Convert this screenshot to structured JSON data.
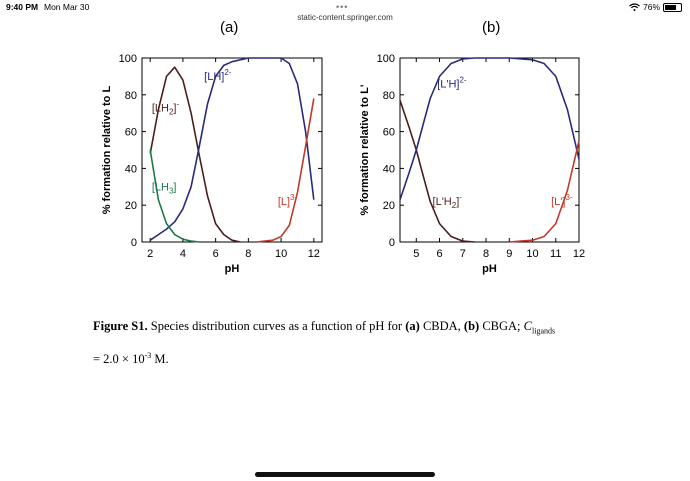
{
  "status_bar": {
    "time": "9:40 PM",
    "date": "Mon Mar 30",
    "battery_text": "76%",
    "battery_level": 0.76,
    "dots": "•••"
  },
  "browser": {
    "url": "static-content.springer.com"
  },
  "chart_data": [
    {
      "type": "line",
      "panel_label": "(a)",
      "xlabel": "pH",
      "ylabel": "% formation relative to L",
      "xlim": [
        1.5,
        12.5
      ],
      "ylim": [
        0,
        100
      ],
      "xticks": [
        2,
        4,
        6,
        8,
        10,
        12
      ],
      "yticks": [
        0,
        20,
        40,
        60,
        80,
        100
      ],
      "series": [
        {
          "name": "[LH2]-",
          "color": "#4a1f1f",
          "x": [
            2,
            2.5,
            3,
            3.5,
            4,
            4.5,
            5,
            5.5,
            6,
            6.5,
            7,
            7.5
          ],
          "y": [
            48,
            72,
            90,
            95,
            88,
            70,
            47,
            25,
            10,
            4,
            1,
            0
          ]
        },
        {
          "name": "[LH]2-",
          "color": "#2a2a7a",
          "x": [
            2,
            2.5,
            3,
            3.5,
            4,
            4.5,
            5,
            5.5,
            6,
            6.5,
            7,
            8,
            9,
            10,
            10.5,
            11,
            11.5,
            12
          ],
          "y": [
            1,
            4,
            7,
            11,
            18,
            30,
            52,
            75,
            90,
            96,
            98,
            100,
            100,
            100,
            97,
            86,
            60,
            23
          ]
        },
        {
          "name": "[LH3]",
          "color": "#1e7a4a",
          "x": [
            2,
            2.5,
            3,
            3.5,
            4,
            4.5,
            5
          ],
          "y": [
            50,
            23,
            10,
            4,
            1.5,
            0.5,
            0
          ]
        },
        {
          "name": "[L]3-",
          "color": "#c0392b",
          "x": [
            8.5,
            9,
            9.5,
            10,
            10.5,
            11,
            11.5,
            12
          ],
          "y": [
            0,
            0.5,
            1,
            3,
            9,
            27,
            52,
            78
          ]
        }
      ],
      "labels": [
        {
          "series": 0,
          "main": "[LH",
          "sub": "2",
          "sup": "]-",
          "x": 2.1,
          "y": 71
        },
        {
          "series": 1,
          "main": "[LH]",
          "sub": "",
          "sup": "2-",
          "x": 5.3,
          "y": 88
        },
        {
          "series": 2,
          "main": "[LH",
          "sub": "3",
          "sup": "]",
          "x": 2.1,
          "y": 28
        },
        {
          "series": 3,
          "main": "[L]",
          "sub": "",
          "sup": "3-",
          "x": 9.8,
          "y": 20
        }
      ]
    },
    {
      "type": "line",
      "panel_label": "(b)",
      "xlabel": "pH",
      "ylabel": "% formation relative to L'",
      "xlim": [
        4.3,
        12
      ],
      "ylim": [
        0,
        100
      ],
      "xticks": [
        5,
        6,
        7,
        8,
        9,
        10,
        11,
        12
      ],
      "yticks": [
        0,
        20,
        40,
        60,
        80,
        100
      ],
      "series": [
        {
          "name": "[L'H2]-",
          "color": "#4a1f1f",
          "x": [
            4.3,
            4.7,
            5,
            5.3,
            5.6,
            6,
            6.5,
            7,
            7.5
          ],
          "y": [
            77,
            62,
            50,
            36,
            22,
            10,
            3,
            0.5,
            0
          ]
        },
        {
          "name": "[L'H]2-",
          "color": "#2a2a7a",
          "x": [
            4.3,
            4.7,
            5,
            5.3,
            5.6,
            6,
            6.5,
            7,
            7.5,
            8,
            9,
            10,
            10.5,
            11,
            11.5,
            12
          ],
          "y": [
            23,
            38,
            50,
            64,
            78,
            90,
            97,
            99.5,
            100,
            100,
            100,
            99,
            97,
            90,
            72,
            45
          ]
        },
        {
          "name": "[L']3-",
          "color": "#c0392b",
          "x": [
            9,
            9.5,
            10,
            10.5,
            11,
            11.5,
            12
          ],
          "y": [
            0,
            0.5,
            1,
            3,
            10,
            28,
            55
          ]
        }
      ],
      "labels": [
        {
          "series": 0,
          "main": "[L'H",
          "sub": "2",
          "sup": "]-",
          "x": 5.7,
          "y": 20
        },
        {
          "series": 1,
          "main": "[L'H]",
          "sub": "",
          "sup": "2-",
          "x": 5.9,
          "y": 84
        },
        {
          "series": 2,
          "main": "[L']",
          "sub": "",
          "sup": "3-",
          "x": 10.8,
          "y": 20
        }
      ]
    }
  ],
  "caption": {
    "line1_label": "Figure S1.",
    "line1_text": " Species distribution curves as a function of pH for ",
    "a_label": "(a)",
    "a_text": " CBDA, ",
    "b_label": "(b)",
    "b_text": " CBGA; ",
    "c_symbol": "C",
    "c_sub": "ligands",
    "line2_text": "= 2.0 × 10",
    "line2_exp": "-3",
    "line2_unit": " M."
  }
}
